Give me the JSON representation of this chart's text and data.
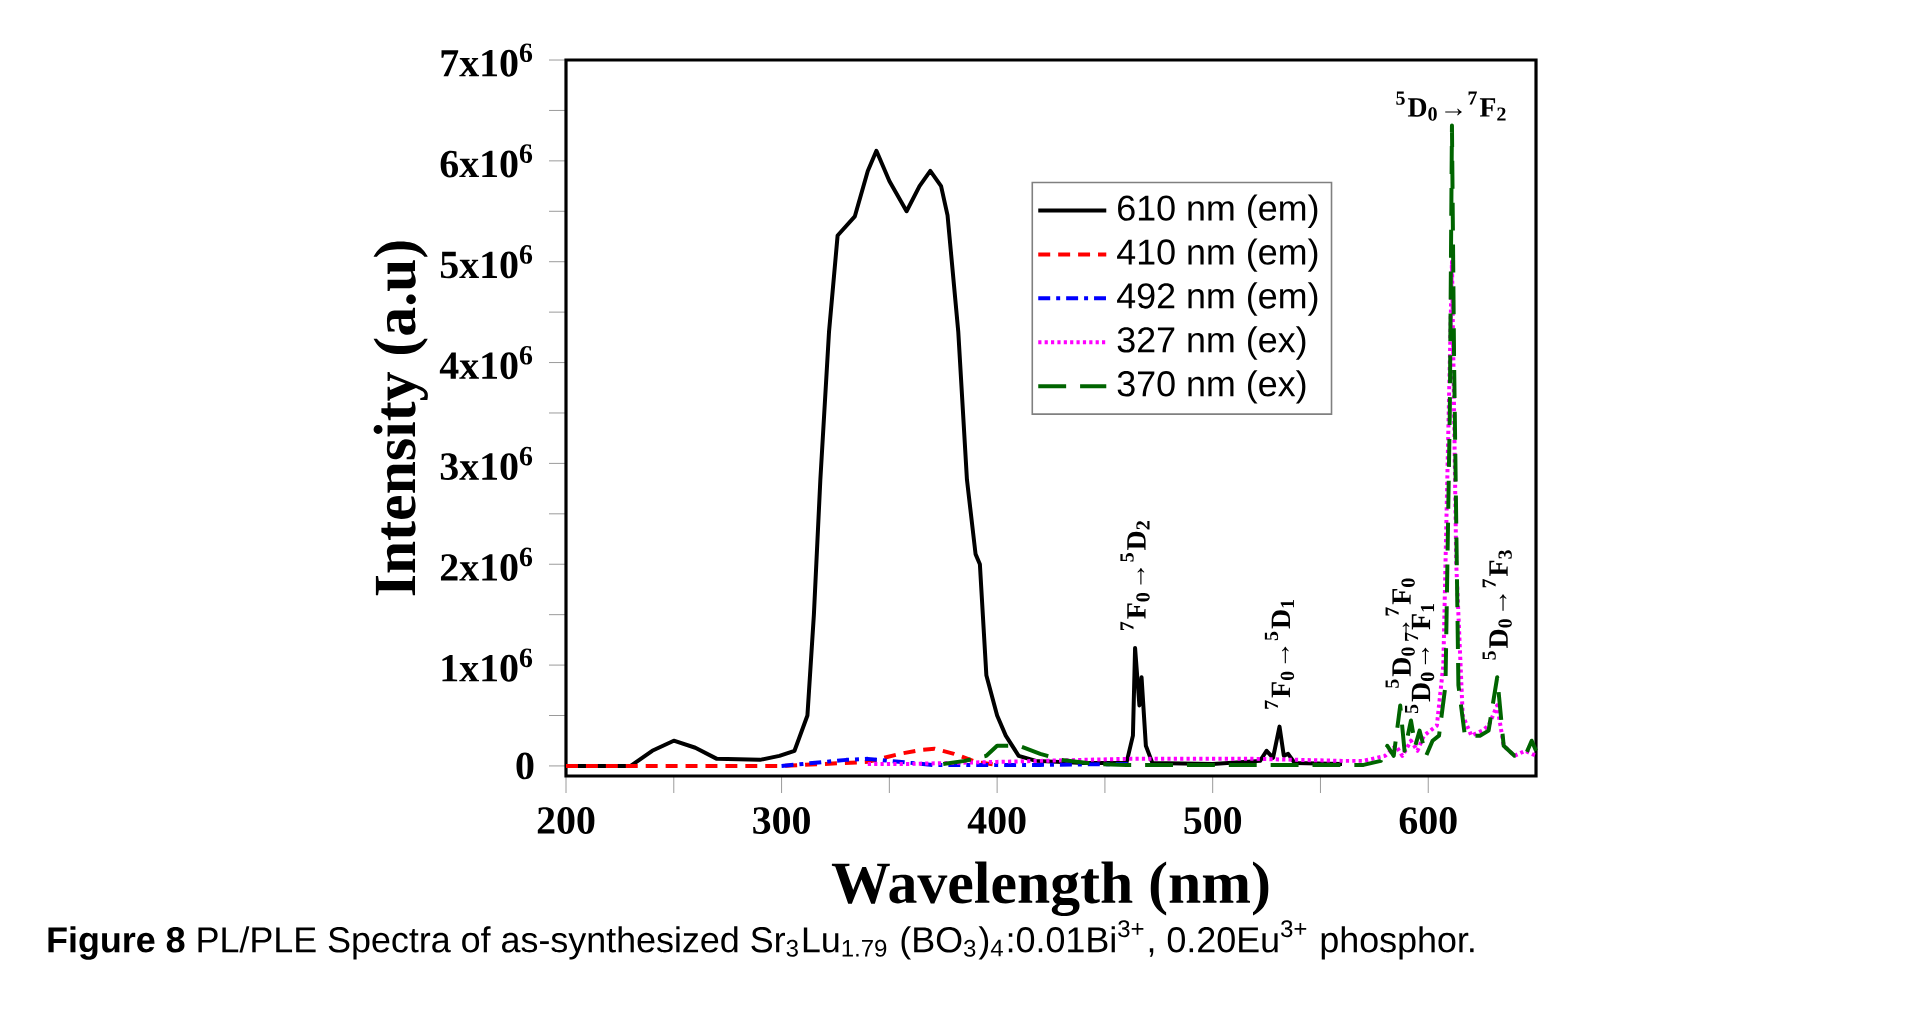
{
  "chart_data": {
    "type": "line",
    "xlabel": "Wavelength (nm)",
    "ylabel": "Intensity (a.u)",
    "xlim": [
      200,
      650
    ],
    "ylim": [
      -100000,
      7000000
    ],
    "xticks": [
      200,
      {
        "value": 250,
        "label": null
      },
      300,
      {
        "value": 350,
        "label": null
      },
      400,
      {
        "value": 450,
        "label": null
      },
      500,
      {
        "value": 550,
        "label": null
      },
      600
    ],
    "yticks": [
      0,
      {
        "value": 500000,
        "label": null
      },
      {
        "value": 1000000,
        "label": "1x10$^{6}$"
      },
      {
        "value": 1500000,
        "label": null
      },
      {
        "value": 2000000,
        "label": "2x10$^{6}$"
      },
      {
        "value": 2500000,
        "label": null
      },
      {
        "value": 3000000,
        "label": "3x10$^{6}$"
      },
      {
        "value": 3500000,
        "label": null
      },
      {
        "value": 4000000,
        "label": "4x10$^{6}$"
      },
      {
        "value": 4500000,
        "label": null
      },
      {
        "value": 5000000,
        "label": "5x10$^{6}$"
      },
      {
        "value": 5500000,
        "label": null
      },
      {
        "value": 6000000,
        "label": "6x10$^{6}$"
      },
      {
        "value": 6500000,
        "label": null
      },
      {
        "value": 7000000,
        "label": "7x10$^{6}$"
      }
    ],
    "legend": "top right",
    "marker": "none",
    "series": [
      {
        "name": "610 nm (em)",
        "color": "#000000",
        "line_style": "solid",
        "x": [
          200,
          230,
          240,
          250,
          260,
          270,
          290,
          299,
          306,
          312,
          315,
          318,
          322,
          326,
          334,
          340,
          344,
          350,
          358,
          364,
          369,
          374,
          377,
          382,
          386,
          390,
          392,
          395,
          400,
          404,
          410,
          418,
          440,
          460,
          463,
          464,
          466,
          467,
          469,
          472,
          500,
          522,
          525,
          528,
          531,
          533,
          535,
          538,
          560
        ],
        "values": [
          0,
          0,
          150000,
          250000,
          180000,
          70000,
          60000,
          100000,
          150000,
          500000,
          1500000,
          2840000,
          4300000,
          5260000,
          5450000,
          5900000,
          6100000,
          5800000,
          5500000,
          5750000,
          5900000,
          5750000,
          5460000,
          4300000,
          2840000,
          2100000,
          2000000,
          900000,
          500000,
          300000,
          100000,
          50000,
          30000,
          30000,
          300000,
          1170000,
          600000,
          880000,
          200000,
          30000,
          20000,
          50000,
          150000,
          80000,
          390000,
          100000,
          120000,
          30000,
          20000
        ]
      },
      {
        "name": "410 nm (em)",
        "color": "#ff0000",
        "line_style": "dashed",
        "x": [
          200,
          230,
          300,
          320,
          340,
          355,
          365,
          371,
          380,
          390,
          400
        ],
        "values": [
          0,
          0,
          0,
          20000,
          40000,
          120000,
          160000,
          170000,
          120000,
          40000,
          10000
        ]
      },
      {
        "name": "492 nm (em)",
        "color": "#0000ff",
        "line_style": "dashdot",
        "x": [
          300,
          310,
          320,
          330,
          340,
          350,
          360,
          370,
          390,
          420,
          462
        ],
        "values": [
          0,
          20000,
          40000,
          60000,
          70000,
          50000,
          30000,
          10000,
          10000,
          10000,
          20000
        ]
      },
      {
        "name": "327 nm (ex)",
        "color": "#ff00ff",
        "line_style": "dotted",
        "x": [
          340,
          360,
          380,
          400,
          420,
          440,
          460,
          480,
          500,
          520,
          540,
          560,
          570,
          580,
          585,
          588,
          592,
          595,
          598,
          601,
          604,
          607,
          609,
          611,
          613,
          616,
          620,
          625,
          628,
          632,
          635,
          640,
          645,
          650
        ],
        "values": [
          20000,
          20000,
          30000,
          40000,
          50000,
          60000,
          70000,
          70000,
          70000,
          70000,
          60000,
          50000,
          50000,
          100000,
          200000,
          100000,
          250000,
          150000,
          300000,
          350000,
          400000,
          1000000,
          3000000,
          5000000,
          2000000,
          500000,
          300000,
          350000,
          400000,
          600000,
          200000,
          100000,
          150000,
          100000
        ]
      },
      {
        "name": "370 nm (ex)",
        "color": "#006400",
        "line_style": "longdash",
        "x": [
          375,
          385,
          395,
          400,
          410,
          420,
          430,
          445,
          460,
          500,
          540,
          570,
          578,
          581,
          584,
          587,
          589,
          592,
          594,
          596,
          599,
          602,
          605,
          608,
          610,
          611,
          612,
          614,
          617,
          620,
          624,
          628,
          632,
          635,
          640,
          645,
          648,
          650
        ],
        "values": [
          20000,
          50000,
          100000,
          200000,
          200000,
          120000,
          60000,
          20000,
          10000,
          10000,
          10000,
          10000,
          50000,
          200000,
          100000,
          600000,
          150000,
          450000,
          200000,
          350000,
          100000,
          250000,
          300000,
          800000,
          3500000,
          6350000,
          4000000,
          800000,
          300000,
          300000,
          300000,
          350000,
          880000,
          200000,
          100000,
          100000,
          250000,
          150000
        ]
      }
    ],
    "annotations": [
      {
        "text": "$^{7}$F$_{0}$→$^{5}$D$_{2}$",
        "x": 464,
        "y": 1170000
      },
      {
        "text": "$^{7}$F$_{0}$→$^{5}$D$_{1}$",
        "x": 531,
        "y": 390000
      },
      {
        "text": "$^{5}$D$_{0}$→$^{7}$F$_{0}$",
        "x": 587,
        "y": 600000
      },
      {
        "text": "$^{5}$D$_{0}$→$^{7}$F$_{1}$",
        "x": 596,
        "y": 350000
      },
      {
        "text": "$^{5}$D$_{0}$→$^{7}$F$_{2}$",
        "x": 611,
        "y": 6350000
      },
      {
        "text": "$^{5}$D$_{0}$→$^{7}$F$_{3}$",
        "x": 632,
        "y": 880000
      },
      "**Figure 8** PL/PLE Spectra of as-synthesized Sr$_{3}$Lu$_{1.79}$ (BO$_{3}$)$_{4}$:0.01Bi$^{3+}$, 0.20Eu$^{3+}$ phosphor."
    ]
  }
}
